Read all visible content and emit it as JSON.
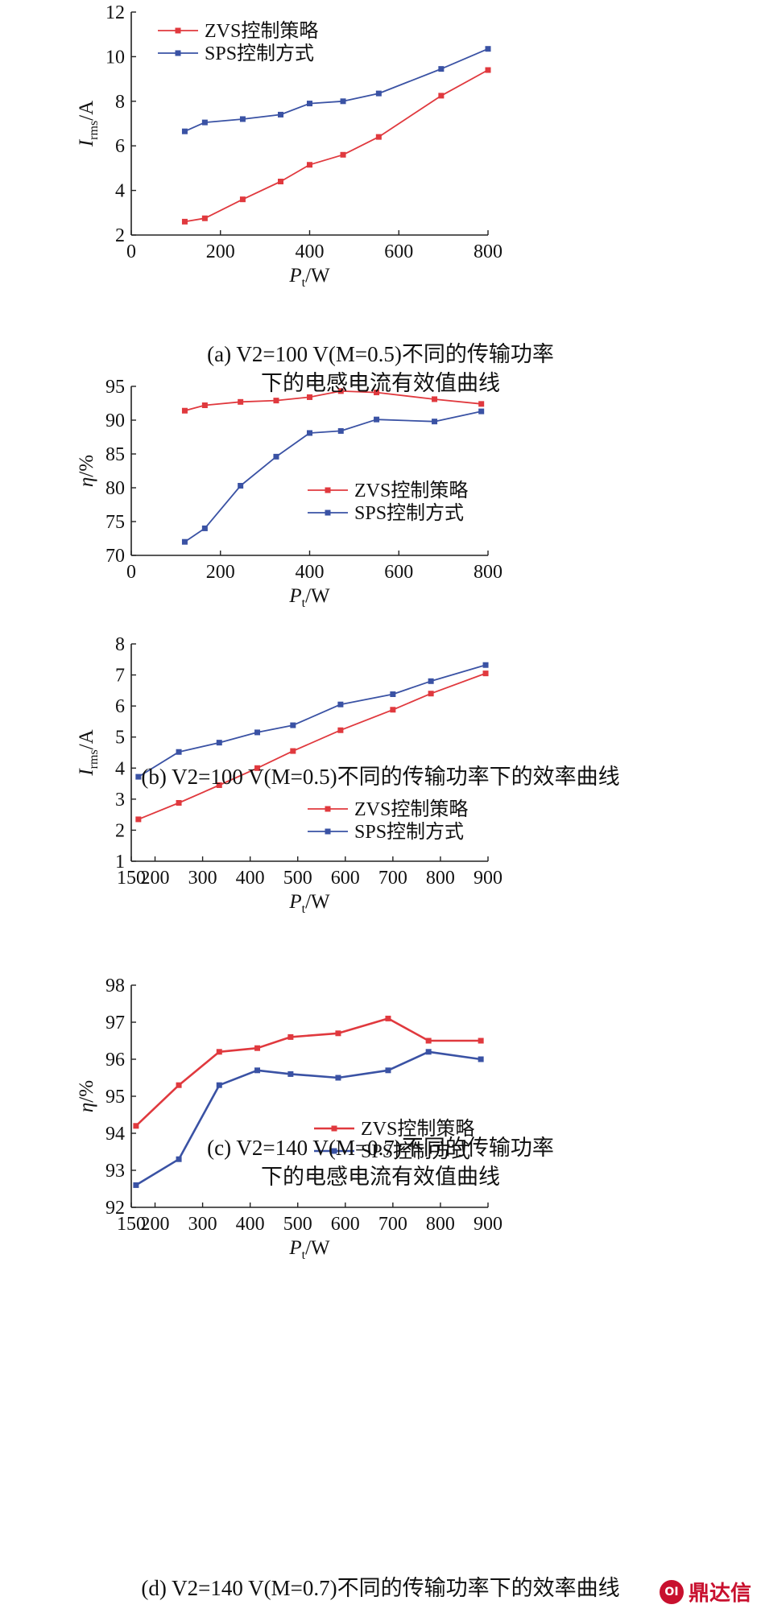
{
  "chart_data": [
    {
      "type": "line",
      "xlabel_main": "P",
      "xlabel_sub": "t",
      "xlabel_unit": "/W",
      "ylabel_main": "I",
      "ylabel_sub": "rms",
      "ylabel_unit": "/A",
      "xlim": [
        0,
        800
      ],
      "ylim": [
        2,
        12
      ],
      "xticks": [
        0,
        200,
        400,
        600,
        800
      ],
      "yticks": [
        2,
        4,
        6,
        8,
        10,
        12
      ],
      "legend_position": "top-left",
      "series": [
        {
          "name": "ZVS控制策略",
          "color": "#e0393e",
          "x": [
            120,
            165,
            250,
            335,
            400,
            475,
            555,
            695,
            800
          ],
          "y": [
            2.6,
            2.75,
            3.6,
            4.4,
            5.15,
            5.6,
            6.4,
            8.25,
            9.4
          ]
        },
        {
          "name": "SPS控制方式",
          "color": "#3a52a4",
          "x": [
            120,
            165,
            250,
            335,
            400,
            475,
            555,
            695,
            800
          ],
          "y": [
            6.65,
            7.05,
            7.2,
            7.4,
            7.9,
            8.0,
            8.35,
            9.45,
            10.35
          ]
        }
      ],
      "caption_lines": [
        "(a) V2=100 V(M=0.5)不同的传输功率",
        "下的电感电流有效值曲线"
      ]
    },
    {
      "type": "line",
      "xlabel_main": "P",
      "xlabel_sub": "t",
      "xlabel_unit": "/W",
      "ylabel_main": "η",
      "ylabel_sub": "",
      "ylabel_unit": "/%",
      "xlim": [
        0,
        800
      ],
      "ylim": [
        70,
        95
      ],
      "xticks": [
        0,
        200,
        400,
        600,
        800
      ],
      "yticks": [
        70,
        75,
        80,
        85,
        90,
        95
      ],
      "legend_position": "center-right",
      "series": [
        {
          "name": "ZVS控制策略",
          "color": "#e0393e",
          "x": [
            120,
            165,
            245,
            325,
            400,
            470,
            550,
            680,
            785
          ],
          "y": [
            91.4,
            92.2,
            92.7,
            92.9,
            93.4,
            94.3,
            94.1,
            93.1,
            92.4
          ]
        },
        {
          "name": "SPS控制方式",
          "color": "#3a52a4",
          "x": [
            120,
            165,
            245,
            325,
            400,
            470,
            550,
            680,
            785
          ],
          "y": [
            72.0,
            74.0,
            80.3,
            84.6,
            88.1,
            88.4,
            90.1,
            89.8,
            91.3
          ]
        }
      ],
      "caption_lines": [
        "(b) V2=100 V(M=0.5)不同的传输功率下的效率曲线"
      ]
    },
    {
      "type": "line",
      "xlabel_main": "P",
      "xlabel_sub": "t",
      "xlabel_unit": "/W",
      "ylabel_main": "I",
      "ylabel_sub": "rms",
      "ylabel_unit": "/A",
      "xlim": [
        150,
        900
      ],
      "ylim": [
        1,
        8
      ],
      "xticks": [
        150,
        200,
        300,
        400,
        500,
        600,
        700,
        800,
        900
      ],
      "yticks": [
        1,
        2,
        3,
        4,
        5,
        6,
        7,
        8
      ],
      "legend_position": "bottom-right",
      "series": [
        {
          "name": "ZVS控制策略",
          "color": "#e0393e",
          "x": [
            165,
            250,
            335,
            415,
            490,
            590,
            700,
            780,
            895
          ],
          "y": [
            2.35,
            2.88,
            3.45,
            4.0,
            4.55,
            5.22,
            5.88,
            6.4,
            7.05
          ]
        },
        {
          "name": "SPS控制方式",
          "color": "#3a52a4",
          "x": [
            165,
            250,
            335,
            415,
            490,
            590,
            700,
            780,
            895
          ],
          "y": [
            3.72,
            4.52,
            4.82,
            5.15,
            5.38,
            6.05,
            6.38,
            6.8,
            7.32
          ]
        }
      ],
      "caption_lines": [
        "(c) V2=140 V(M=0.7)不同的传输功率",
        "下的电感电流有效值曲线"
      ]
    },
    {
      "type": "line",
      "xlabel_main": "P",
      "xlabel_sub": "t",
      "xlabel_unit": "/W",
      "ylabel_main": "η",
      "ylabel_sub": "",
      "ylabel_unit": "/%",
      "xlim": [
        150,
        900
      ],
      "ylim": [
        92,
        98
      ],
      "xticks": [
        150,
        200,
        300,
        400,
        500,
        600,
        700,
        800,
        900
      ],
      "yticks": [
        92,
        93,
        94,
        95,
        96,
        97,
        98
      ],
      "legend_position": "bottom-right",
      "series": [
        {
          "name": "ZVS控制策略",
          "color": "#e0393e",
          "x": [
            160,
            250,
            335,
            415,
            485,
            585,
            690,
            775,
            885
          ],
          "y": [
            94.2,
            95.3,
            96.2,
            96.3,
            96.6,
            96.7,
            97.1,
            96.5,
            96.5
          ]
        },
        {
          "name": "SPS控制方式",
          "color": "#3a52a4",
          "x": [
            160,
            250,
            335,
            415,
            485,
            585,
            690,
            775,
            885
          ],
          "y": [
            92.6,
            93.3,
            95.3,
            95.7,
            95.6,
            95.5,
            95.7,
            96.2,
            96.0
          ]
        }
      ],
      "caption_lines": [
        "(d) V2=140 V(M=0.7)不同的传输功率下的效率曲线"
      ]
    }
  ],
  "watermark": {
    "text": "鼎达信",
    "logo_text": "OI"
  }
}
